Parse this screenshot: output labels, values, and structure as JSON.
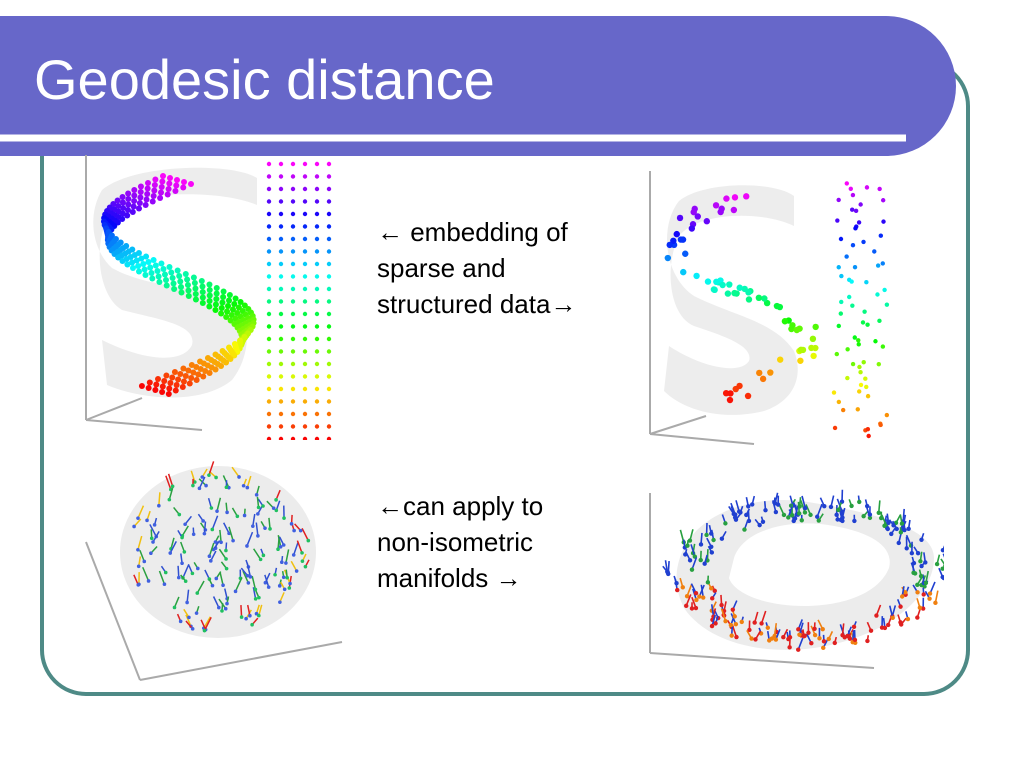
{
  "slide": {
    "title": "Geodesic distance",
    "colors": {
      "title_bar": "#6767c9",
      "frame_border": "#4e8a86",
      "title_text": "#ffffff"
    }
  },
  "captions": {
    "embedding": {
      "lines": [
        "← embedding of",
        "sparse and",
        "structured data→"
      ]
    },
    "manifolds": {
      "lines": [
        "←can apply to",
        "non-isometric",
        "manifolds →"
      ]
    }
  },
  "figures": [
    {
      "name": "s-shape-dense-plot",
      "points": "dense rainbow S curve with grid embedding"
    },
    {
      "name": "s-shape-sparse-plot",
      "points": "sparse rainbow S curve with scattered embedding"
    },
    {
      "name": "sphere-vector-field-plot",
      "points": "hemisphere with vector glyphs"
    },
    {
      "name": "torus-vector-field-plot",
      "points": "rounded-square ring with vector glyphs"
    }
  ]
}
